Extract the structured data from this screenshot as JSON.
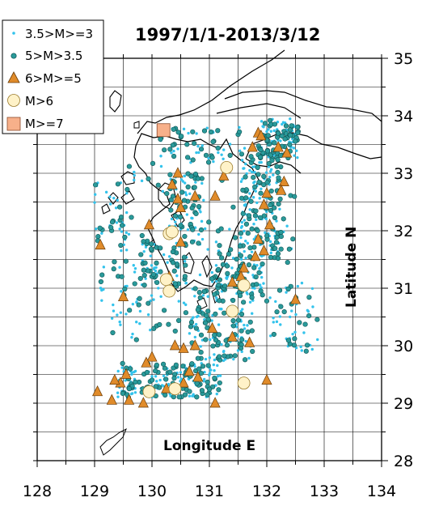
{
  "title": "1997/1/1-2013/3/12",
  "xlabel": "Longitude E",
  "ylabel": "Latitude N",
  "x_ticks": [
    "128",
    "129",
    "130",
    "131",
    "132",
    "133",
    "134"
  ],
  "y_ticks": [
    "35",
    "34",
    "33",
    "32",
    "31",
    "30",
    "29",
    "28"
  ],
  "legend": [
    {
      "label": "3.5>M>=3",
      "symbol": "small-dot",
      "color": "#33c3ec"
    },
    {
      "label": "5>M>3.5",
      "symbol": "teal-circle",
      "color": "#2a9a9a"
    },
    {
      "label": "6>M>=5",
      "symbol": "orange-triangle",
      "color": "#e08b2a"
    },
    {
      "label": "M>6",
      "symbol": "cream-circle",
      "color": "#fff2c8"
    },
    {
      "label": "M>=7",
      "symbol": "salmon-square",
      "color": "#f7b08a"
    }
  ],
  "chart_data": {
    "type": "scatter",
    "title": "1997/1/1-2013/3/12",
    "xlabel": "Longitude E",
    "ylabel": "Latitude N",
    "xlim": [
      128,
      134
    ],
    "ylim": [
      28,
      35
    ],
    "grid": true,
    "legend_position": "top-left",
    "series": [
      {
        "name": "M>=7",
        "points": [
          [
            130.2,
            33.75
          ]
        ]
      },
      {
        "name": "M>6",
        "points": [
          [
            130.3,
            31.95
          ],
          [
            130.35,
            31.98
          ],
          [
            130.25,
            31.15
          ],
          [
            130.3,
            30.95
          ],
          [
            131.3,
            33.1
          ],
          [
            131.6,
            31.05
          ],
          [
            131.4,
            30.6
          ],
          [
            131.6,
            29.35
          ],
          [
            129.95,
            29.2
          ],
          [
            130.4,
            29.25
          ]
        ]
      },
      {
        "name": "6>M>=5",
        "points": [
          [
            129.1,
            31.75
          ],
          [
            129.95,
            32.1
          ],
          [
            130.5,
            31.8
          ],
          [
            130.5,
            32.4
          ],
          [
            130.45,
            32.55
          ],
          [
            130.35,
            32.8
          ],
          [
            130.45,
            33.0
          ],
          [
            130.75,
            32.6
          ],
          [
            131.1,
            32.6
          ],
          [
            131.25,
            32.95
          ],
          [
            131.85,
            33.7
          ],
          [
            131.75,
            33.45
          ],
          [
            131.9,
            33.65
          ],
          [
            132.2,
            33.45
          ],
          [
            132.35,
            33.35
          ],
          [
            132.0,
            32.65
          ],
          [
            131.95,
            32.45
          ],
          [
            132.3,
            32.85
          ],
          [
            132.25,
            32.7
          ],
          [
            132.05,
            32.1
          ],
          [
            131.85,
            31.85
          ],
          [
            131.95,
            31.65
          ],
          [
            131.8,
            31.55
          ],
          [
            131.6,
            31.35
          ],
          [
            131.55,
            31.2
          ],
          [
            131.4,
            31.1
          ],
          [
            132.5,
            30.8
          ],
          [
            130.3,
            31.2
          ],
          [
            129.5,
            30.85
          ],
          [
            130.4,
            30.0
          ],
          [
            130.75,
            30.0
          ],
          [
            130.55,
            29.95
          ],
          [
            131.7,
            30.05
          ],
          [
            131.4,
            30.15
          ],
          [
            131.05,
            30.3
          ],
          [
            130.0,
            29.8
          ],
          [
            129.9,
            29.7
          ],
          [
            129.55,
            29.5
          ],
          [
            129.45,
            29.35
          ],
          [
            129.35,
            29.4
          ],
          [
            129.05,
            29.2
          ],
          [
            129.3,
            29.05
          ],
          [
            129.6,
            29.05
          ],
          [
            129.85,
            29.0
          ],
          [
            130.25,
            29.25
          ],
          [
            130.55,
            29.35
          ],
          [
            130.65,
            29.55
          ],
          [
            130.8,
            29.45
          ],
          [
            131.1,
            29.0
          ],
          [
            132.0,
            29.4
          ]
        ]
      }
    ],
    "background_density": "dense scatter of small M>=3 and M>3.5 events across the map extent"
  },
  "colors": {
    "small_dot": "#33c3ec",
    "teal_fill": "#2a9a9a",
    "teal_stroke": "#0c5252",
    "triangle_fill": "#e08b2a",
    "triangle_stroke": "#6b3d08",
    "big_fill": "#fff2c8",
    "big_stroke": "#9b7b2c",
    "square_fill": "#f7b08a",
    "square_stroke": "#8a4a2a"
  }
}
